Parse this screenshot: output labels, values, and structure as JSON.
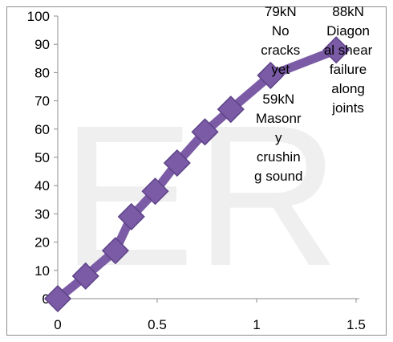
{
  "chart_data": {
    "type": "line",
    "x_ticks": [
      "0",
      "0.5",
      "1",
      "1.5"
    ],
    "y_ticks": [
      "0",
      "10",
      "20",
      "30",
      "40",
      "50",
      "60",
      "70",
      "80",
      "90",
      "100"
    ],
    "xlim": [
      0,
      1.5
    ],
    "ylim": [
      0,
      100
    ],
    "grid": false,
    "legend": "none",
    "series": [
      {
        "color": "#7b5ba6",
        "marker": "diamond",
        "x": [
          0,
          0.14,
          0.29,
          0.37,
          0.49,
          0.6,
          0.74,
          0.87,
          1.07,
          1.4
        ],
        "y": [
          0,
          8,
          17,
          29,
          38,
          48,
          59,
          67,
          79,
          88
        ]
      }
    ],
    "annotations": [
      {
        "x": 1.12,
        "y": 100,
        "lines": [
          "79kN",
          "No",
          "cracks",
          "yet"
        ]
      },
      {
        "x": 1.11,
        "y": 69,
        "lines": [
          "59kN",
          "Masonr",
          "y",
          "crushin",
          "g sound"
        ]
      },
      {
        "x": 1.46,
        "y": 100,
        "lines": [
          "88kN",
          "Diagon",
          "al shear",
          "failure",
          "along",
          "joints"
        ]
      }
    ],
    "watermark": "ER"
  }
}
